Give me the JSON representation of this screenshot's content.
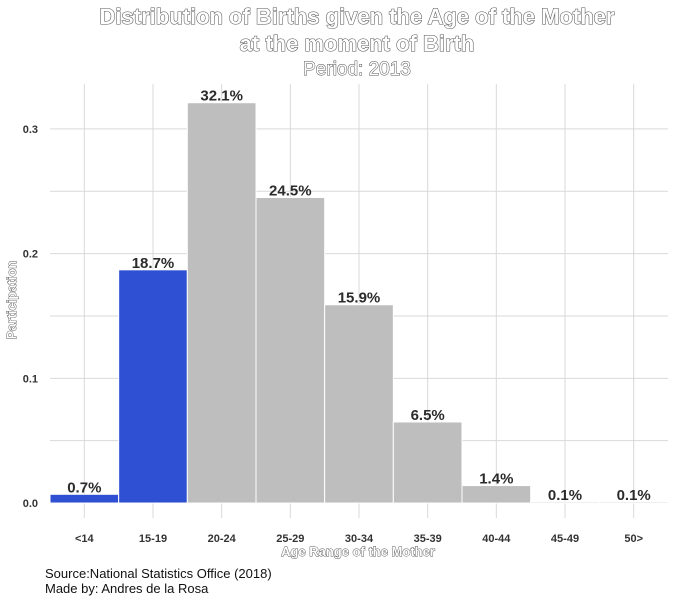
{
  "title_line1": "Distribution of Births given the Age of the Mother",
  "title_line2": "at the moment of Birth",
  "subtitle": "Period: 2013",
  "caption_source": "Source:National Statistics Office (2018)",
  "caption_author": "Made by: Andres de la Rosa",
  "chart_data": {
    "type": "bar",
    "categories": [
      "<14",
      "15-19",
      "20-24",
      "25-29",
      "30-34",
      "35-39",
      "40-44",
      "45-49",
      "50>"
    ],
    "values": [
      0.007,
      0.187,
      0.321,
      0.245,
      0.159,
      0.065,
      0.014,
      0.001,
      0.001
    ],
    "data_labels": [
      "0.7%",
      "18.7%",
      "32.1%",
      "24.5%",
      "15.9%",
      "6.5%",
      "1.4%",
      "0.1%",
      "0.1%"
    ],
    "xlabel": "Age Range of the Mother",
    "ylabel": "Participation",
    "yticks": [
      0.0,
      0.1,
      0.2,
      0.3
    ],
    "ytick_labels": [
      "0.0",
      "0.1",
      "0.2",
      "0.3"
    ],
    "ylim": [
      -0.012,
      0.336
    ],
    "grid": true,
    "legend": "none",
    "colors": {
      "highlight": "#3050D4",
      "default": "#BEBEBE",
      "grid": "#D9D9D9"
    },
    "highlight_index": [
      0,
      1
    ]
  }
}
